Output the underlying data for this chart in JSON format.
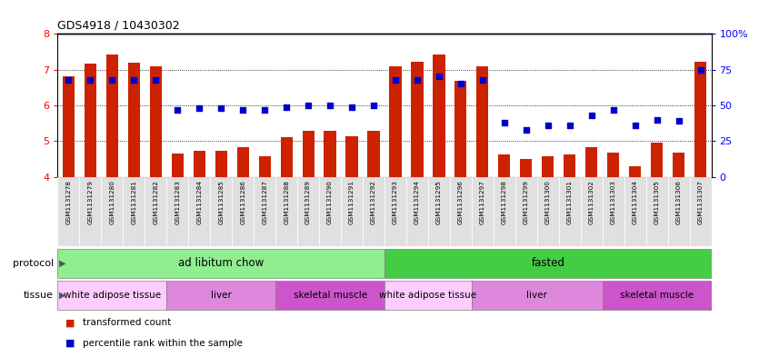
{
  "title": "GDS4918 / 10430302",
  "samples": [
    "GSM1131278",
    "GSM1131279",
    "GSM1131280",
    "GSM1131281",
    "GSM1131282",
    "GSM1131283",
    "GSM1131284",
    "GSM1131285",
    "GSM1131286",
    "GSM1131287",
    "GSM1131288",
    "GSM1131289",
    "GSM1131290",
    "GSM1131291",
    "GSM1131292",
    "GSM1131293",
    "GSM1131294",
    "GSM1131295",
    "GSM1131296",
    "GSM1131297",
    "GSM1131298",
    "GSM1131299",
    "GSM1131300",
    "GSM1131301",
    "GSM1131302",
    "GSM1131303",
    "GSM1131304",
    "GSM1131305",
    "GSM1131306",
    "GSM1131307"
  ],
  "bar_values": [
    6.82,
    7.18,
    7.42,
    7.2,
    7.1,
    4.65,
    4.73,
    4.73,
    4.83,
    4.57,
    5.1,
    5.28,
    5.28,
    5.13,
    5.28,
    7.1,
    7.22,
    7.42,
    6.68,
    7.1,
    4.62,
    4.5,
    4.58,
    4.63,
    4.83,
    4.68,
    4.3,
    4.95,
    4.68,
    7.22
  ],
  "dot_values": [
    68,
    68,
    68,
    68,
    68,
    47,
    48,
    48,
    47,
    47,
    49,
    50,
    50,
    49,
    50,
    68,
    68,
    70,
    65,
    68,
    38,
    33,
    36,
    36,
    43,
    47,
    36,
    40,
    39,
    75
  ],
  "bar_color": "#cc2200",
  "dot_color": "#0000cc",
  "ylim_left": [
    4,
    8
  ],
  "ylim_right": [
    0,
    100
  ],
  "yticks_left": [
    4,
    5,
    6,
    7,
    8
  ],
  "yticks_right": [
    0,
    25,
    50,
    75,
    100
  ],
  "ytick_labels_right": [
    "0",
    "25",
    "50",
    "75",
    "100%"
  ],
  "protocol_groups": [
    {
      "label": "ad libitum chow",
      "start": 0,
      "end": 15,
      "color": "#90ee90"
    },
    {
      "label": "fasted",
      "start": 15,
      "end": 30,
      "color": "#44cc44"
    }
  ],
  "tissue_groups": [
    {
      "label": "white adipose tissue",
      "start": 0,
      "end": 5,
      "color": "#ffccff"
    },
    {
      "label": "liver",
      "start": 5,
      "end": 10,
      "color": "#ee88ee"
    },
    {
      "label": "skeletal muscle",
      "start": 10,
      "end": 15,
      "color": "#dd66dd"
    },
    {
      "label": "white adipose tissue",
      "start": 15,
      "end": 19,
      "color": "#ffccff"
    },
    {
      "label": "liver",
      "start": 19,
      "end": 25,
      "color": "#ee88ee"
    },
    {
      "label": "skeletal muscle",
      "start": 25,
      "end": 30,
      "color": "#dd66dd"
    }
  ],
  "bar_width": 0.55
}
